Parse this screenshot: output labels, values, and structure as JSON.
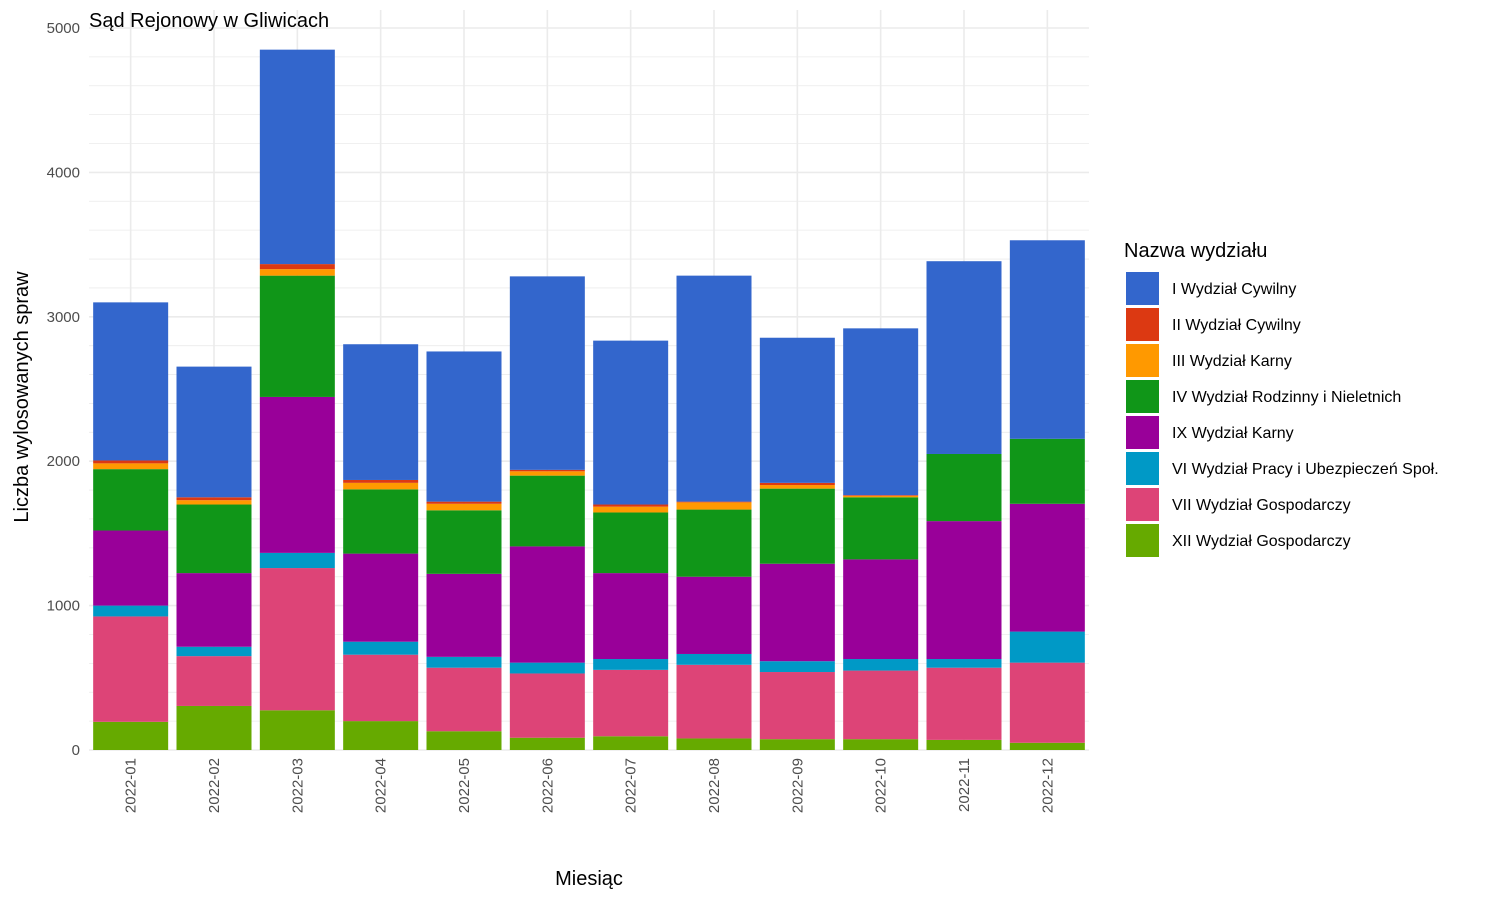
{
  "chart_data": {
    "type": "bar",
    "stacked": true,
    "title": "Sąd Rejonowy w Gliwicach",
    "xlabel": "Miesiąc",
    "ylabel": "Liczba wylosowanych spraw",
    "ylim": [
      0,
      5000
    ],
    "yticks": [
      0,
      1000,
      2000,
      3000,
      4000,
      5000
    ],
    "grid": true,
    "legend": {
      "title": "Nazwa wydziału",
      "position": "right"
    },
    "categories": [
      "2022-01",
      "2022-02",
      "2022-03",
      "2022-04",
      "2022-05",
      "2022-06",
      "2022-07",
      "2022-08",
      "2022-09",
      "2022-10",
      "2022-11",
      "2022-12"
    ],
    "series": [
      {
        "name": "XII Wydział Gospodarczy",
        "color": "#66AA00",
        "values": [
          195,
          305,
          275,
          200,
          130,
          85,
          95,
          80,
          75,
          75,
          70,
          50
        ]
      },
      {
        "name": "VII Wydział Gospodarczy",
        "color": "#DD4477",
        "values": [
          730,
          345,
          985,
          460,
          440,
          445,
          460,
          510,
          465,
          475,
          500,
          555
        ]
      },
      {
        "name": "VI Wydział Pracy i Ubezpieczeń Społ.",
        "color": "#0099C6",
        "values": [
          75,
          65,
          105,
          90,
          75,
          75,
          75,
          75,
          75,
          80,
          60,
          215
        ]
      },
      {
        "name": "IX Wydział Karny",
        "color": "#990099",
        "values": [
          520,
          510,
          1080,
          610,
          575,
          805,
          595,
          535,
          675,
          690,
          955,
          885
        ]
      },
      {
        "name": "IV Wydział Rodzinny i Nieletnich",
        "color": "#109618",
        "values": [
          425,
          475,
          840,
          445,
          440,
          490,
          420,
          465,
          520,
          430,
          465,
          450
        ]
      },
      {
        "name": "III Wydział Karny",
        "color": "#FF9900",
        "values": [
          40,
          30,
          45,
          45,
          45,
          30,
          40,
          50,
          25,
          10,
          0,
          0
        ]
      },
      {
        "name": "II Wydział Cywilny",
        "color": "#DC3912",
        "values": [
          20,
          20,
          35,
          20,
          15,
          10,
          15,
          5,
          15,
          5,
          0,
          0
        ]
      },
      {
        "name": "I Wydział Cywilny",
        "color": "#3366CC",
        "values": [
          1095,
          905,
          1485,
          940,
          1040,
          1340,
          1135,
          1565,
          1005,
          1155,
          1335,
          1375
        ]
      }
    ],
    "legend_order": [
      "I Wydział Cywilny",
      "II Wydział Cywilny",
      "III Wydział Karny",
      "IV Wydział Rodzinny i Nieletnich",
      "IX Wydział Karny",
      "VI Wydział Pracy i Ubezpieczeń Społ.",
      "VII Wydział Gospodarczy",
      "XII Wydział Gospodarczy"
    ]
  }
}
